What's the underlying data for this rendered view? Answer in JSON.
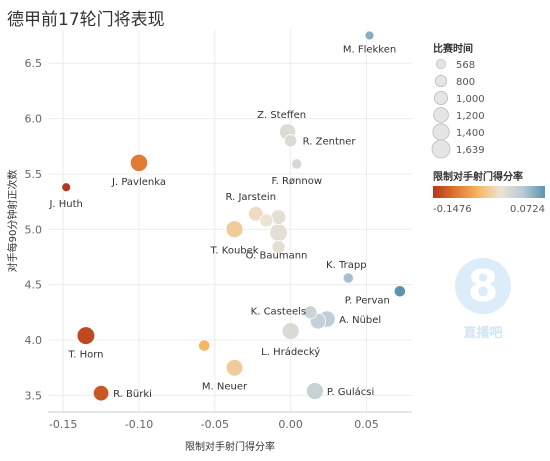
{
  "title": "德甲前17轮门将表现",
  "watermark": {
    "text": "直播吧"
  },
  "chart_data": {
    "type": "scatter",
    "xlabel": "限制对手射门得分率",
    "ylabel": "对手每90分钟射正次数",
    "xlim": [
      -0.16,
      0.08
    ],
    "ylim": [
      3.35,
      6.8
    ],
    "xticks": [
      -0.15,
      -0.1,
      -0.05,
      0.0,
      0.05
    ],
    "xtick_labels": [
      "-0.15",
      "-0.10",
      "-0.05",
      "0.00",
      "0.05"
    ],
    "yticks": [
      3.5,
      4.0,
      4.5,
      5.0,
      5.5,
      6.0,
      6.5
    ],
    "ytick_labels": [
      "3.5",
      "4.0",
      "4.5",
      "5.0",
      "5.5",
      "6.0",
      "6.5"
    ],
    "grid": true,
    "points": [
      {
        "name": "M. Flekken",
        "x": 0.052,
        "y": 6.75,
        "size": 568
      },
      {
        "name": "Z. Steffen",
        "x": -0.002,
        "y": 5.88,
        "size": 1400
      },
      {
        "name": "R. Zentner",
        "x": 0.0,
        "y": 5.8,
        "size": 900
      },
      {
        "name": "F. Rønnow",
        "x": 0.004,
        "y": 5.59,
        "size": 700
      },
      {
        "name": "J. Pavlenka",
        "x": -0.1,
        "y": 5.6,
        "size": 1550
      },
      {
        "name": "J. Huth",
        "x": -0.148,
        "y": 5.38,
        "size": 568
      },
      {
        "name": "R. Jarstein",
        "x": -0.023,
        "y": 5.14,
        "size": 1200
      },
      {
        "name": "",
        "x": -0.016,
        "y": 5.08,
        "size": 1000
      },
      {
        "name": "",
        "x": -0.008,
        "y": 5.11,
        "size": 1200
      },
      {
        "name": "T. Koubek",
        "x": -0.037,
        "y": 5.0,
        "size": 1500
      },
      {
        "name": "O. Baumann",
        "x": -0.008,
        "y": 4.97,
        "size": 1600
      },
      {
        "name": "",
        "x": -0.008,
        "y": 4.84,
        "size": 1000
      },
      {
        "name": "K. Trapp",
        "x": 0.038,
        "y": 4.56,
        "size": 700
      },
      {
        "name": "P. Pervan",
        "x": 0.072,
        "y": 4.44,
        "size": 800
      },
      {
        "name": "K. Casteels",
        "x": 0.013,
        "y": 4.25,
        "size": 1000
      },
      {
        "name": "",
        "x": 0.018,
        "y": 4.17,
        "size": 1300
      },
      {
        "name": "A. Nübel",
        "x": 0.024,
        "y": 4.19,
        "size": 1400
      },
      {
        "name": "L. Hrádecký",
        "x": 0.0,
        "y": 4.08,
        "size": 1500
      },
      {
        "name": "T. Horn",
        "x": -0.135,
        "y": 4.04,
        "size": 1600
      },
      {
        "name": "",
        "x": -0.057,
        "y": 3.95,
        "size": 800
      },
      {
        "name": "M. Neuer",
        "x": -0.037,
        "y": 3.75,
        "size": 1450
      },
      {
        "name": "R. Bürki",
        "x": -0.125,
        "y": 3.52,
        "size": 1300
      },
      {
        "name": "P. Gulácsi",
        "x": 0.016,
        "y": 3.54,
        "size": 1500
      }
    ],
    "size_legend": {
      "title": "比赛时间",
      "values": [
        568,
        800,
        1000,
        1200,
        1400,
        1639
      ],
      "labels": [
        "568",
        "800",
        "1,000",
        "1,200",
        "1,400",
        "1,639"
      ]
    },
    "color_legend": {
      "title": "限制对手射门得分率",
      "min": -0.1476,
      "max": 0.0724,
      "min_label": "-0.1476",
      "max_label": "0.0724",
      "colors": [
        "#b5371d",
        "#e0762f",
        "#f5b461",
        "#ece3d4",
        "#b9ccd6",
        "#5b93ad"
      ]
    }
  }
}
